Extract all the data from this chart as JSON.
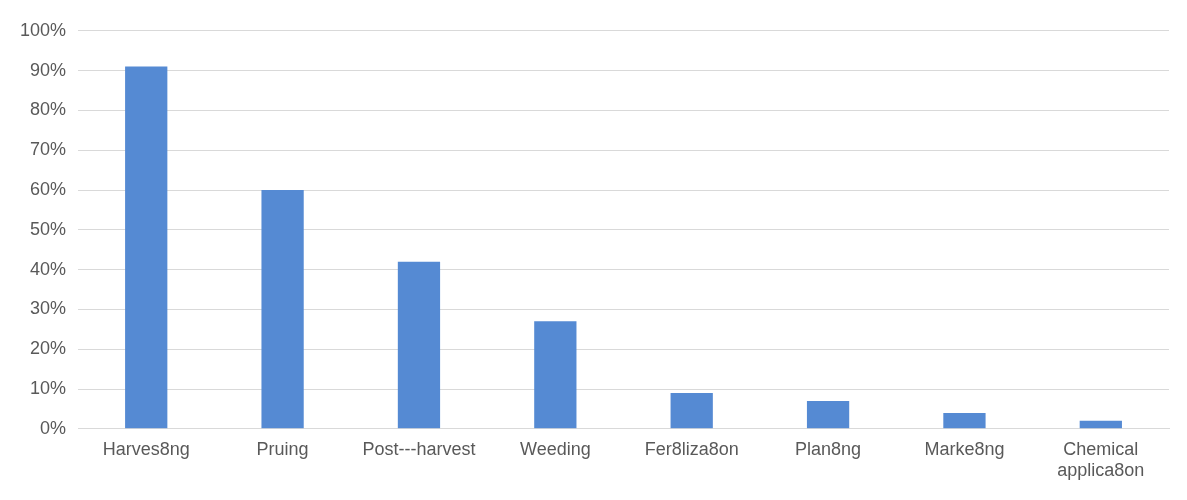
{
  "chart_data": {
    "type": "bar",
    "categories": [
      "Harves8ng",
      "Pruing",
      "Post---harvest",
      "Weeding",
      "Fer8liza8on",
      "Plan8ng",
      "Marke8ng",
      "Chemical applica8on"
    ],
    "values": [
      91,
      60,
      42,
      27,
      9,
      7,
      4,
      2
    ],
    "color": "#558ad3",
    "ylim": [
      0,
      100
    ],
    "yticks": [
      {
        "value": 0,
        "label": "0%"
      },
      {
        "value": 10,
        "label": "10%"
      },
      {
        "value": 20,
        "label": "20%"
      },
      {
        "value": 30,
        "label": "30%"
      },
      {
        "value": 40,
        "label": "40%"
      },
      {
        "value": 50,
        "label": "50%"
      },
      {
        "value": 60,
        "label": "60%"
      },
      {
        "value": 70,
        "label": "70%"
      },
      {
        "value": 80,
        "label": "80%"
      },
      {
        "value": 90,
        "label": "90%"
      },
      {
        "value": 100,
        "label": "100%"
      }
    ],
    "grid": "y",
    "legend": false
  }
}
